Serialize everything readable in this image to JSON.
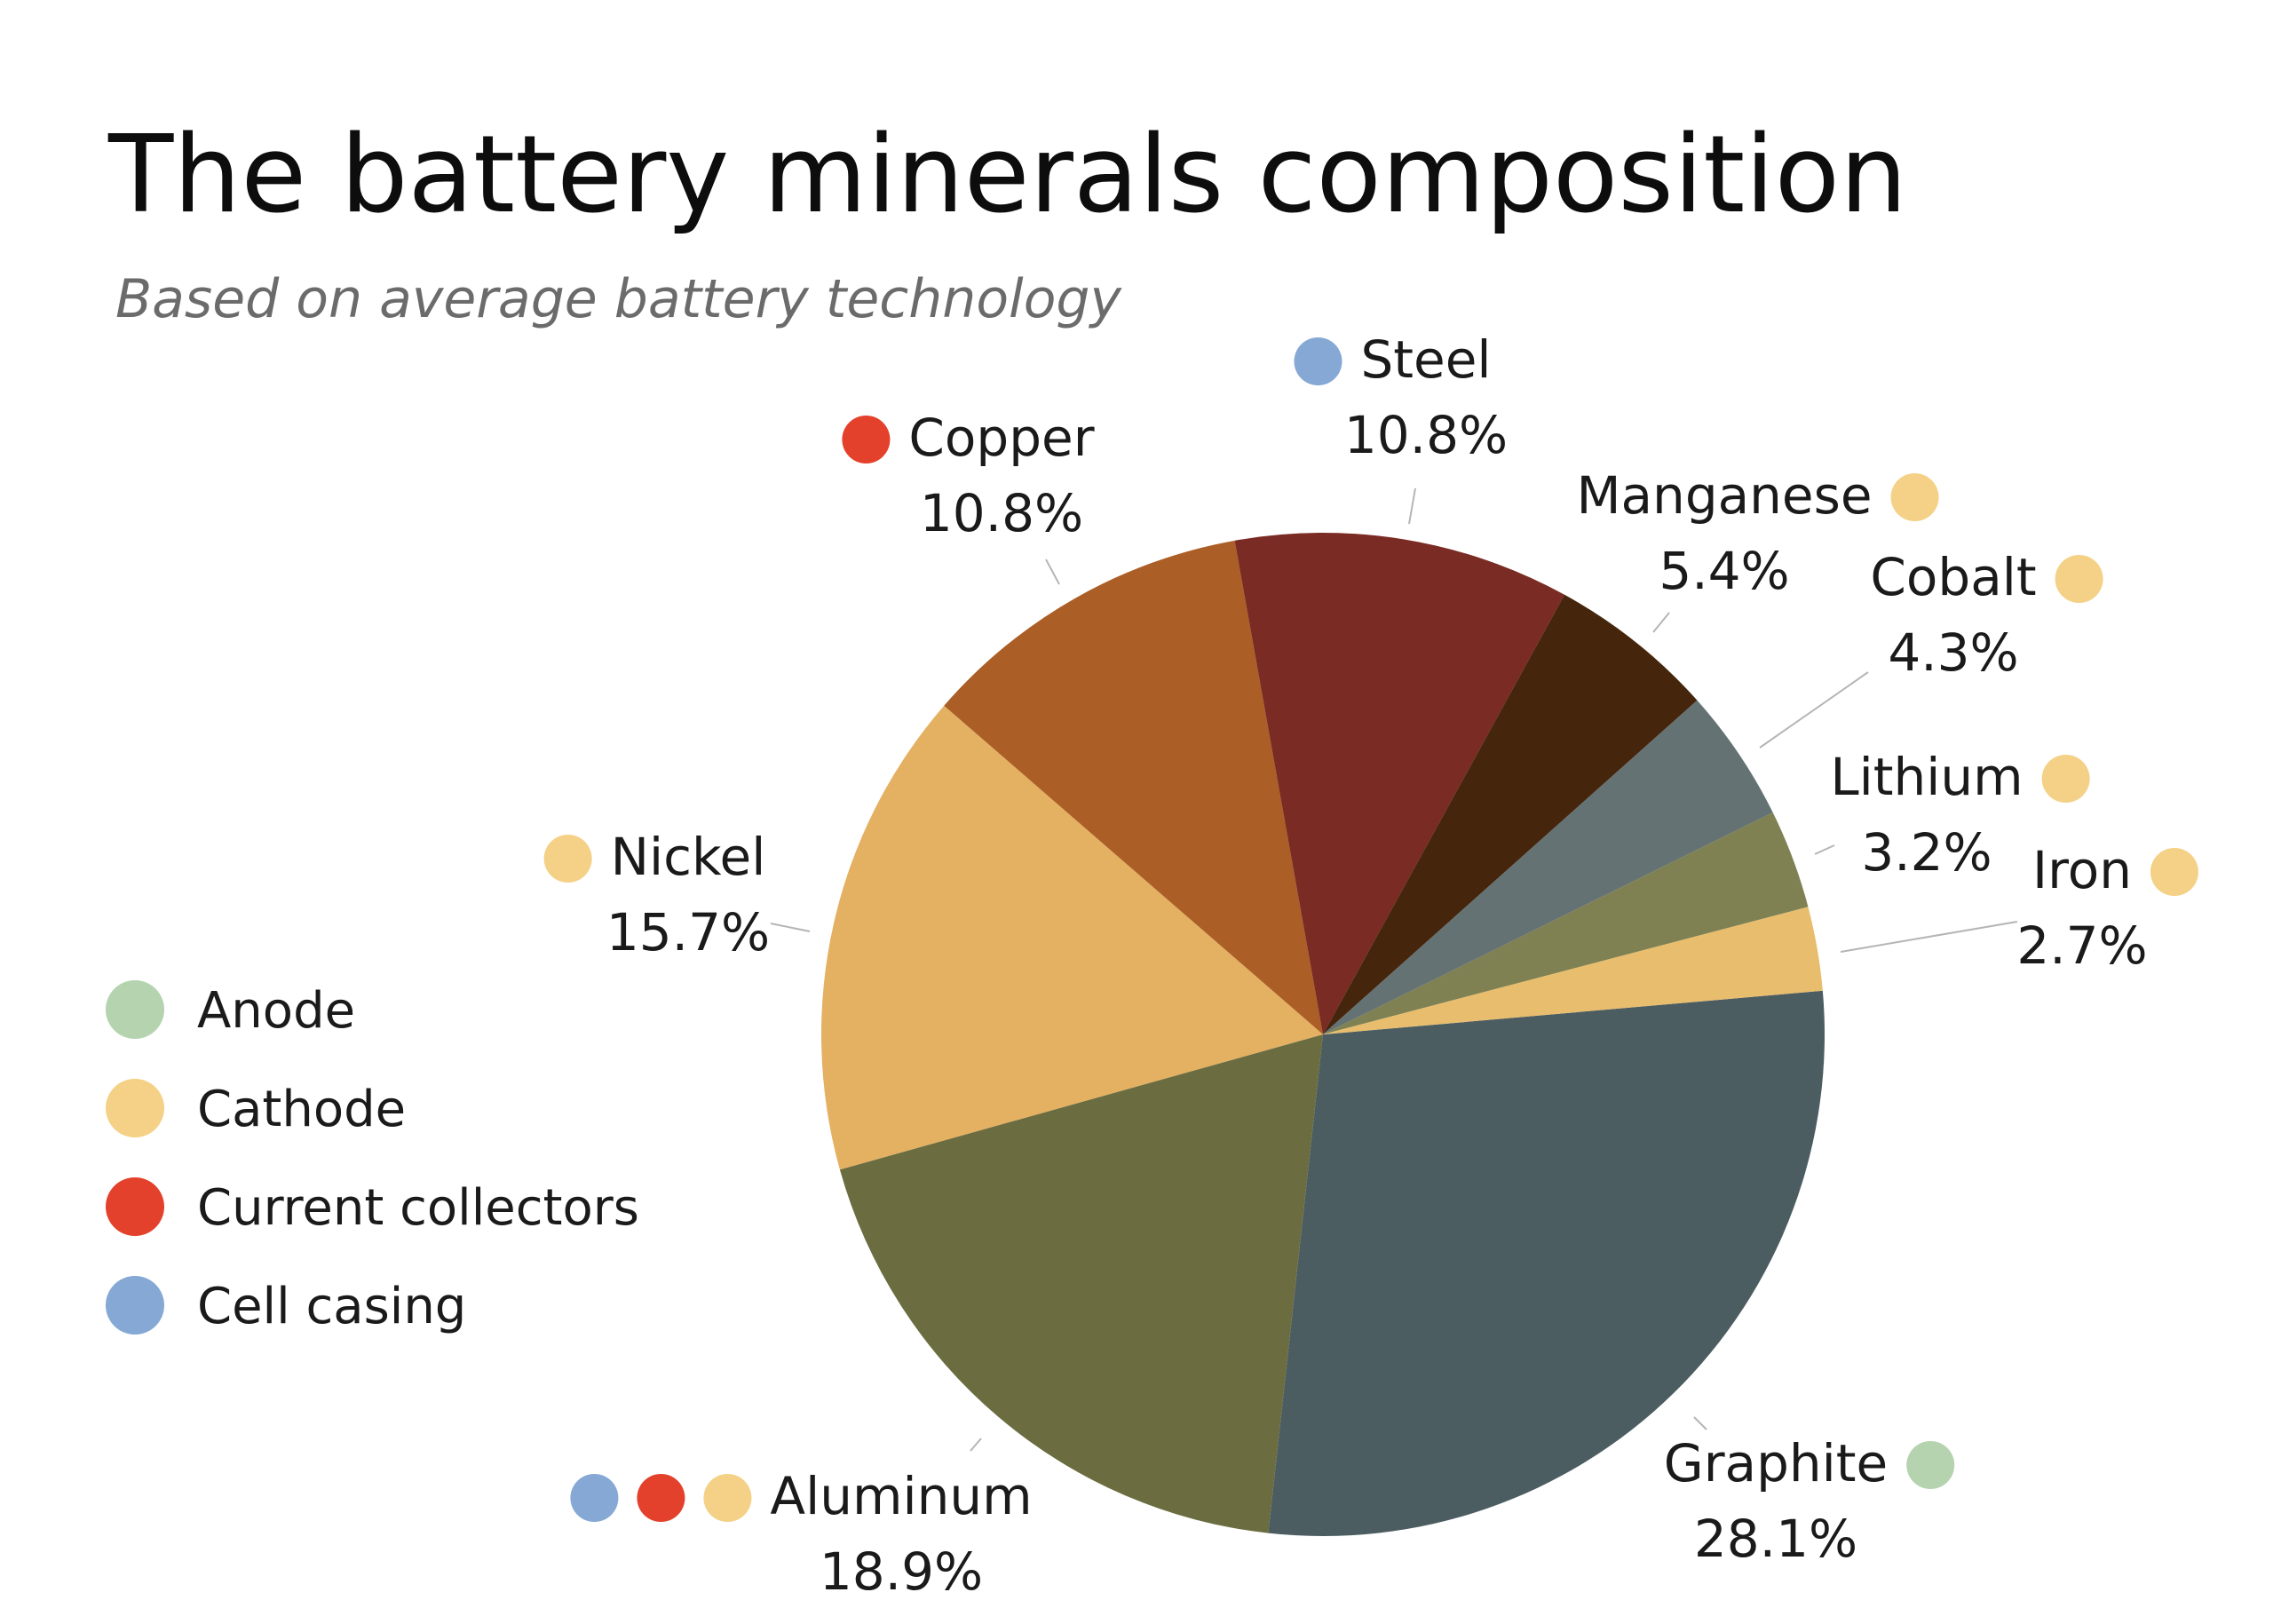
{
  "chart_data": {
    "type": "pie",
    "title": "The battery minerals composition",
    "subtitle": "Based on average battery technology",
    "slices": [
      {
        "name": "Graphite",
        "value": 28.1,
        "value_label": "28.1%",
        "color": "#4c5d61",
        "groups": [
          "Anode"
        ]
      },
      {
        "name": "Aluminum",
        "value": 18.9,
        "value_label": "18.9%",
        "color": "#6b6d41",
        "groups": [
          "Cell casing",
          "Current collectors",
          "Cathode"
        ]
      },
      {
        "name": "Nickel",
        "value": 15.7,
        "value_label": "15.7%",
        "color": "#e4b062",
        "groups": [
          "Cathode"
        ]
      },
      {
        "name": "Copper",
        "value": 10.8,
        "value_label": "10.8%",
        "color": "#ab5e26",
        "groups": [
          "Current collectors"
        ]
      },
      {
        "name": "Steel",
        "value": 10.8,
        "value_label": "10.8%",
        "color": "#7a2b23",
        "groups": [
          "Cell casing"
        ]
      },
      {
        "name": "Manganese",
        "value": 5.4,
        "value_label": "5.4%",
        "color": "#45260c",
        "groups": [
          "Cathode"
        ]
      },
      {
        "name": "Cobalt",
        "value": 4.3,
        "value_label": "4.3%",
        "color": "#647274",
        "groups": [
          "Cathode"
        ]
      },
      {
        "name": "Lithium",
        "value": 3.2,
        "value_label": "3.2%",
        "color": "#7f8152",
        "groups": [
          "Cathode"
        ]
      },
      {
        "name": "Iron",
        "value": 2.7,
        "value_label": "2.7%",
        "color": "#e8bd6e",
        "groups": [
          "Cathode"
        ]
      }
    ],
    "legend": [
      {
        "name": "Anode",
        "color": "#b4d3ae"
      },
      {
        "name": "Cathode",
        "color": "#f4d186"
      },
      {
        "name": "Current collectors",
        "color": "#e3412b"
      },
      {
        "name": "Cell casing",
        "color": "#85a8d5"
      }
    ],
    "legend_position": "left"
  }
}
